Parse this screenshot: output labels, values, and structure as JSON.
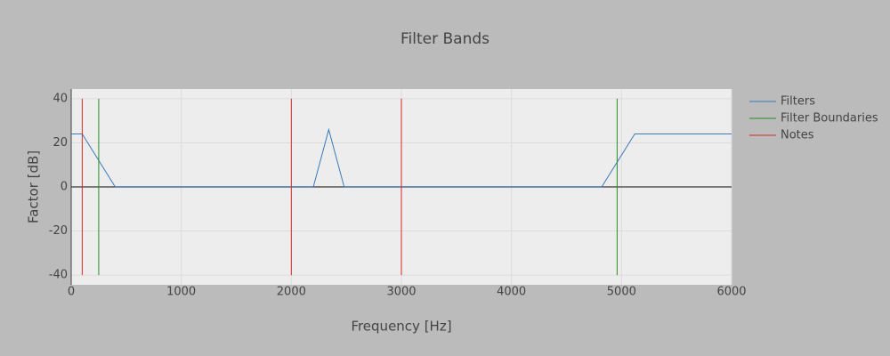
{
  "chart_data": {
    "type": "line",
    "title": "Filter Bands",
    "x_label": "Frequency [Hz]",
    "y_label": "Factor [dB]",
    "xlim": [
      0,
      6000
    ],
    "ylim": [
      -44.4,
      44.4
    ],
    "xticks": [
      0,
      1000,
      2000,
      3000,
      4000,
      5000,
      6000
    ],
    "yticks": [
      -40,
      -20,
      0,
      20,
      40
    ],
    "grid": true,
    "legend": "top-right",
    "series": [
      {
        "name": "Filters",
        "color": "#3a7ab8",
        "x": [
          0,
          100,
          400,
          2200,
          2340,
          2480,
          4820,
          5120,
          6000
        ],
        "values": [
          24,
          24,
          0,
          0,
          26,
          0,
          0,
          24,
          24
        ]
      },
      {
        "name": "Filter Boundaries",
        "color": "#2a8a2a",
        "x": [
          250,
          250,
          null,
          4960,
          4960
        ],
        "values": [
          -40,
          40,
          null,
          -40,
          40
        ]
      },
      {
        "name": "Notes",
        "color": "#d62728",
        "x": [
          100,
          100,
          null,
          2000,
          2000,
          null,
          3000,
          3000
        ],
        "values": [
          -40,
          40,
          null,
          -40,
          40,
          null,
          -40,
          40
        ]
      }
    ]
  }
}
